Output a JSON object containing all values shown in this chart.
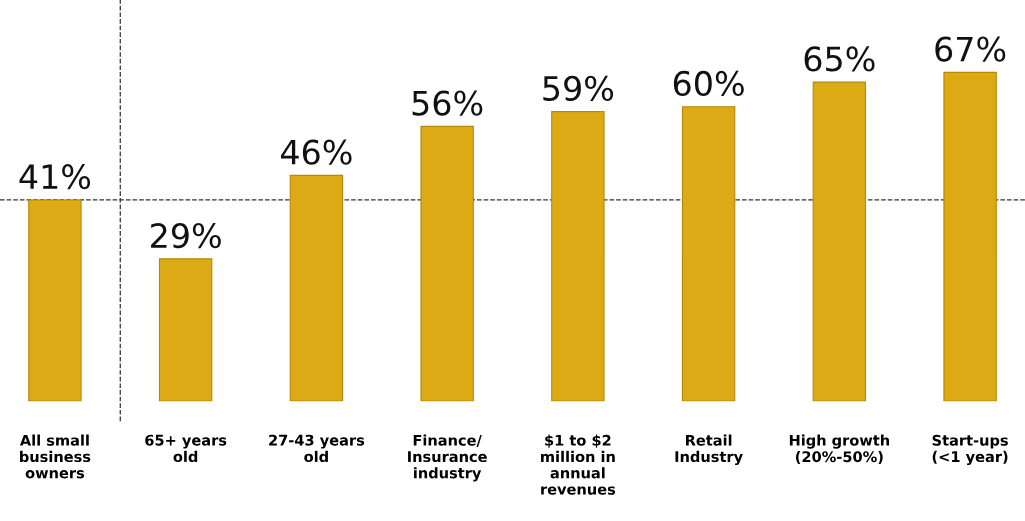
{
  "chart_data": {
    "type": "bar",
    "categories": [
      "All small\nbusiness\nowners",
      "65+ years\nold",
      "27-43 years\nold",
      "Finance/\nInsurance\nindustry",
      "$1 to $2\nmillion in\nannual\nrevenues",
      "Retail\nIndustry",
      "High growth\n(20%-50%)",
      "Start-ups\n(<1 year)"
    ],
    "values": [
      41,
      29,
      46,
      56,
      59,
      60,
      65,
      67
    ],
    "value_labels": [
      "41%",
      "29%",
      "46%",
      "56%",
      "59%",
      "60%",
      "65%",
      "67%"
    ],
    "color": "#dcaa14",
    "ref_lines": [
      {
        "axis": "y",
        "value": 41,
        "line_style": "dashed",
        "color": "#333333"
      }
    ],
    "grid": false,
    "legend": false
  }
}
